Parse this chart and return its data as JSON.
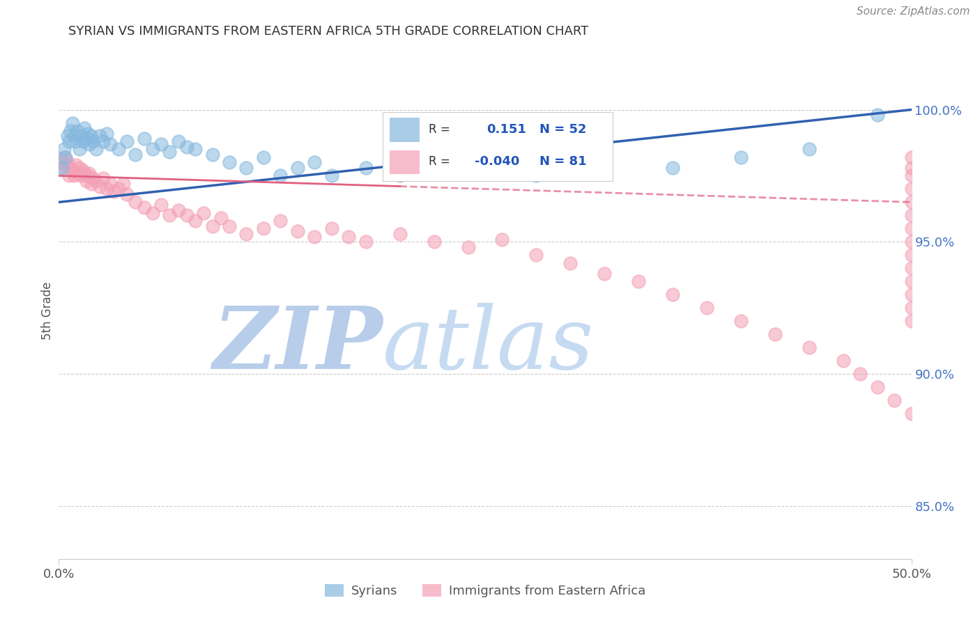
{
  "title": "SYRIAN VS IMMIGRANTS FROM EASTERN AFRICA 5TH GRADE CORRELATION CHART",
  "source_text": "Source: ZipAtlas.com",
  "ylabel": "5th Grade",
  "xlim": [
    0.0,
    50.0
  ],
  "ylim": [
    83.0,
    101.8
  ],
  "x_ticks": [
    0.0,
    50.0
  ],
  "x_tick_labels": [
    "0.0%",
    "50.0%"
  ],
  "y_ticks": [
    85.0,
    90.0,
    95.0,
    100.0
  ],
  "y_tick_labels": [
    "85.0%",
    "90.0%",
    "95.0%",
    "100.0%"
  ],
  "legend_r_blue": "0.151",
  "legend_n_blue": "52",
  "legend_r_pink": "-0.040",
  "legend_n_pink": "81",
  "blue_color": "#85b8de",
  "pink_color": "#f4a0b5",
  "trend_blue_color": "#3060b0",
  "trend_pink_color": "#e06080",
  "watermark_zip": "ZIP",
  "watermark_atlas": "atlas",
  "watermark_color_zip": "#b0c8e8",
  "watermark_color_atlas": "#c0d8f0",
  "blue_trend_y0": 96.5,
  "blue_trend_y1": 100.0,
  "pink_trend_y0": 97.5,
  "pink_trend_y1": 96.5,
  "pink_dash_start_x": 20.0,
  "blue_x": [
    0.2,
    0.3,
    0.4,
    0.5,
    0.6,
    0.7,
    0.8,
    0.9,
    1.0,
    1.1,
    1.2,
    1.3,
    1.4,
    1.5,
    1.6,
    1.7,
    1.8,
    1.9,
    2.0,
    2.2,
    2.4,
    2.6,
    2.8,
    3.0,
    3.5,
    4.0,
    4.5,
    5.0,
    5.5,
    6.0,
    6.5,
    7.0,
    7.5,
    8.0,
    9.0,
    10.0,
    11.0,
    12.0,
    13.0,
    14.0,
    15.0,
    16.0,
    18.0,
    20.0,
    22.0,
    25.0,
    28.0,
    32.0,
    36.0,
    40.0,
    44.0,
    48.0
  ],
  "blue_y": [
    97.8,
    98.5,
    98.2,
    99.0,
    98.8,
    99.2,
    99.5,
    99.0,
    98.8,
    99.2,
    98.5,
    99.0,
    98.8,
    99.3,
    98.9,
    99.1,
    98.7,
    99.0,
    98.8,
    98.5,
    99.0,
    98.8,
    99.1,
    98.7,
    98.5,
    98.8,
    98.3,
    98.9,
    98.5,
    98.7,
    98.4,
    98.8,
    98.6,
    98.5,
    98.3,
    98.0,
    97.8,
    98.2,
    97.5,
    97.8,
    98.0,
    97.5,
    97.8,
    97.5,
    98.0,
    97.8,
    97.5,
    98.2,
    97.8,
    98.2,
    98.5,
    99.8
  ],
  "pink_x": [
    0.1,
    0.2,
    0.3,
    0.4,
    0.5,
    0.6,
    0.7,
    0.8,
    0.9,
    1.0,
    1.1,
    1.2,
    1.3,
    1.4,
    1.5,
    1.6,
    1.7,
    1.8,
    1.9,
    2.0,
    2.2,
    2.4,
    2.6,
    2.8,
    3.0,
    3.2,
    3.5,
    3.8,
    4.0,
    4.5,
    5.0,
    5.5,
    6.0,
    6.5,
    7.0,
    7.5,
    8.0,
    8.5,
    9.0,
    9.5,
    10.0,
    11.0,
    12.0,
    13.0,
    14.0,
    15.0,
    16.0,
    17.0,
    18.0,
    20.0,
    22.0,
    24.0,
    26.0,
    28.0,
    30.0,
    32.0,
    34.0,
    36.0,
    38.0,
    40.0,
    42.0,
    44.0,
    46.0,
    47.0,
    48.0,
    49.0,
    50.0,
    50.0,
    50.0,
    50.0,
    50.0,
    50.0,
    50.0,
    50.0,
    50.0,
    50.0,
    50.0,
    50.0,
    50.0,
    50.0,
    50.0
  ],
  "pink_y": [
    98.0,
    97.8,
    98.2,
    97.9,
    98.0,
    97.5,
    97.8,
    97.7,
    97.5,
    97.9,
    97.6,
    97.8,
    97.5,
    97.7,
    97.6,
    97.3,
    97.5,
    97.6,
    97.2,
    97.4,
    97.3,
    97.1,
    97.4,
    97.0,
    97.2,
    96.9,
    97.0,
    97.2,
    96.8,
    96.5,
    96.3,
    96.1,
    96.4,
    96.0,
    96.2,
    96.0,
    95.8,
    96.1,
    95.6,
    95.9,
    95.6,
    95.3,
    95.5,
    95.8,
    95.4,
    95.2,
    95.5,
    95.2,
    95.0,
    95.3,
    95.0,
    94.8,
    95.1,
    94.5,
    94.2,
    93.8,
    93.5,
    93.0,
    92.5,
    92.0,
    91.5,
    91.0,
    90.5,
    90.0,
    89.5,
    89.0,
    98.2,
    97.8,
    97.5,
    97.0,
    96.5,
    96.0,
    95.5,
    95.0,
    94.5,
    94.0,
    93.5,
    93.0,
    92.5,
    92.0,
    88.5
  ]
}
